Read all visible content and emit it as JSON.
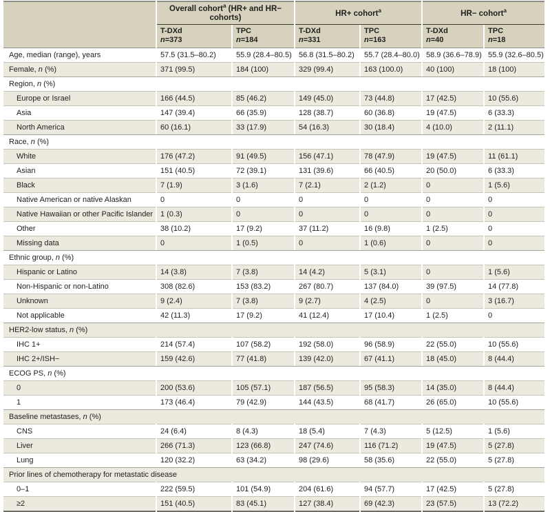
{
  "table": {
    "colors": {
      "header_bg": "#d6d2be",
      "stripe_bg": "#eceade",
      "rule_light": "#c6c4b9",
      "rule_section": "#a6a49a",
      "rule_dark": "#8f8e86",
      "group_underline": "#3f3e36",
      "text": "#1e1e1c"
    },
    "groups": [
      {
        "title": "Overall cohort",
        "sup": "a",
        "note": " (HR+ and HR− cohorts)",
        "cols": [
          {
            "drug": "T-DXd",
            "n": "n=373"
          },
          {
            "drug": "TPC",
            "n": "n=184"
          }
        ]
      },
      {
        "title": "HR+ cohort",
        "sup": "a",
        "note": "",
        "cols": [
          {
            "drug": "T-DXd",
            "n": "n=331"
          },
          {
            "drug": "TPC",
            "n": "n=163"
          }
        ]
      },
      {
        "title": "HR− cohort",
        "sup": "a",
        "note": "",
        "cols": [
          {
            "drug": "T-DXd",
            "n": "n=40"
          },
          {
            "drug": "TPC",
            "n": "n=18"
          }
        ]
      }
    ],
    "rows": [
      {
        "label": "Age, median (range), years",
        "values": [
          "57.5 (31.5–80.2)",
          "55.9 (28.4–80.5)",
          "56.8 (31.5–80.2)",
          "55.7 (28.4–80.0)",
          "58.9 (36.6–78.9)",
          "55.9 (32.6–80.5)"
        ]
      },
      {
        "label": "Female, n (%)",
        "values": [
          "371 (99.5)",
          "184 (100)",
          "329 (99.4)",
          "163 (100.0)",
          "40 (100)",
          "18 (100)"
        ]
      },
      {
        "label": "Region, n (%)",
        "section": true
      },
      {
        "label": "Europe or Israel",
        "indent": true,
        "values": [
          "166 (44.5)",
          "85 (46.2)",
          "149 (45.0)",
          "73 (44.8)",
          "17 (42.5)",
          "10 (55.6)"
        ]
      },
      {
        "label": "Asia",
        "indent": true,
        "values": [
          "147 (39.4)",
          "66 (35.9)",
          "128 (38.7)",
          "60 (36.8)",
          "19 (47.5)",
          "6 (33.3)"
        ]
      },
      {
        "label": "North America",
        "indent": true,
        "values": [
          "60 (16.1)",
          "33 (17.9)",
          "54 (16.3)",
          "30 (18.4)",
          "4 (10.0)",
          "2 (11.1)"
        ]
      },
      {
        "label": "Race, n (%)",
        "section": true
      },
      {
        "label": "White",
        "indent": true,
        "values": [
          "176 (47.2)",
          "91 (49.5)",
          "156 (47.1)",
          "78 (47.9)",
          "19 (47.5)",
          "11 (61.1)"
        ]
      },
      {
        "label": "Asian",
        "indent": true,
        "values": [
          "151 (40.5)",
          "72 (39.1)",
          "131 (39.6)",
          "66 (40.5)",
          "20 (50.0)",
          "6 (33.3)"
        ]
      },
      {
        "label": "Black",
        "indent": true,
        "values": [
          "7 (1.9)",
          "3 (1.6)",
          "7 (2.1)",
          "2 (1.2)",
          "0",
          "1 (5.6)"
        ]
      },
      {
        "label": "Native American or native Alaskan",
        "indent": true,
        "values": [
          "0",
          "0",
          "0",
          "0",
          "0",
          "0"
        ]
      },
      {
        "label": "Native Hawaiian or other Pacific Islander",
        "indent": true,
        "values": [
          "1 (0.3)",
          "0",
          "0",
          "0",
          "0",
          "0"
        ]
      },
      {
        "label": "Other",
        "indent": true,
        "values": [
          "38 (10.2)",
          "17 (9.2)",
          "37 (11.2)",
          "16 (9.8)",
          "1 (2.5)",
          "0"
        ]
      },
      {
        "label": "Missing data",
        "indent": true,
        "values": [
          "0",
          "1 (0.5)",
          "0",
          "1 (0.6)",
          "0",
          "0"
        ]
      },
      {
        "label": "Ethnic group, n (%)",
        "section": true
      },
      {
        "label": "Hispanic or Latino",
        "indent": true,
        "values": [
          "14 (3.8)",
          "7 (3.8)",
          "14 (4.2)",
          "5 (3.1)",
          "0",
          "1 (5.6)"
        ]
      },
      {
        "label": "Non-Hispanic or non-Latino",
        "indent": true,
        "values": [
          "308 (82.6)",
          "153 (83.2)",
          "267 (80.7)",
          "137 (84.0)",
          "39 (97.5)",
          "14 (77.8)"
        ]
      },
      {
        "label": "Unknown",
        "indent": true,
        "values": [
          "9 (2.4)",
          "7 (3.8)",
          "9 (2.7)",
          "4 (2.5)",
          "0",
          "3 (16.7)"
        ]
      },
      {
        "label": "Not applicable",
        "indent": true,
        "values": [
          "42 (11.3)",
          "17 (9.2)",
          "41 (12.4)",
          "17 (10.4)",
          "1 (2.5)",
          "0"
        ]
      },
      {
        "label": "HER2-low status, n (%)",
        "section": true
      },
      {
        "label": "IHC 1+",
        "indent": true,
        "values": [
          "214 (57.4)",
          "107 (58.2)",
          "192 (58.0)",
          "96 (58.9)",
          "22 (55.0)",
          "10 (55.6)"
        ]
      },
      {
        "label": "IHC 2+/ISH−",
        "indent": true,
        "values": [
          "159 (42.6)",
          "77 (41.8)",
          "139 (42.0)",
          "67 (41.1)",
          "18 (45.0)",
          "8 (44.4)"
        ]
      },
      {
        "label": "ECOG PS, n (%)",
        "section": true
      },
      {
        "label": "0",
        "indent": true,
        "values": [
          "200 (53.6)",
          "105 (57.1)",
          "187 (56.5)",
          "95 (58.3)",
          "14 (35.0)",
          "8 (44.4)"
        ]
      },
      {
        "label": "1",
        "indent": true,
        "values": [
          "173 (46.4)",
          "79 (42.9)",
          "144 (43.5)",
          "68 (41.7)",
          "26 (65.0)",
          "10 (55.6)"
        ]
      },
      {
        "label": "Baseline metastases, n (%)",
        "section": true
      },
      {
        "label": "CNS",
        "indent": true,
        "values": [
          "24 (6.4)",
          "8 (4.3)",
          "18 (5.4)",
          "7 (4.3)",
          "5 (12.5)",
          "1 (5.6)"
        ]
      },
      {
        "label": "Liver",
        "indent": true,
        "values": [
          "266 (71.3)",
          "123 (66.8)",
          "247 (74.6)",
          "116 (71.2)",
          "19 (47.5)",
          "5 (27.8)"
        ]
      },
      {
        "label": "Lung",
        "indent": true,
        "values": [
          "120 (32.2)",
          "63 (34.2)",
          "98 (29.6)",
          "58 (35.6)",
          "22 (55.0)",
          "5 (27.8)"
        ]
      },
      {
        "label": "Prior lines of chemotherapy for metastatic disease",
        "section": true
      },
      {
        "label": "0–1",
        "indent": true,
        "values": [
          "222 (59.5)",
          "101 (54.9)",
          "204 (61.6)",
          "94 (57.7)",
          "17 (42.5)",
          "5 (27.8)"
        ]
      },
      {
        "label": "≥2",
        "indent": true,
        "values": [
          "151 (40.5)",
          "83 (45.1)",
          "127 (38.4)",
          "69 (42.3)",
          "23 (57.5)",
          "13 (72.2)"
        ]
      }
    ]
  }
}
